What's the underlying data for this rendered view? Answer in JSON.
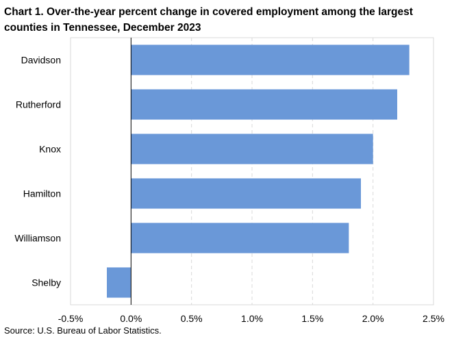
{
  "title": "Chart 1. Over-the-year percent change in covered employment among the largest counties in Tennessee, December 2023",
  "source": "Source: U.S. Bureau of Labor Statistics.",
  "chart_data": {
    "type": "bar",
    "orientation": "horizontal",
    "title": "Chart 1. Over-the-year percent change in covered employment among the largest counties in Tennessee, December 2023",
    "categories": [
      "Davidson",
      "Rutherford",
      "Knox",
      "Hamilton",
      "Williamson",
      "Shelby"
    ],
    "values": [
      2.3,
      2.2,
      2.0,
      1.9,
      1.8,
      -0.2
    ],
    "unit": "%",
    "xlim": [
      -0.5,
      2.5
    ],
    "xticks": [
      -0.5,
      0.0,
      0.5,
      1.0,
      1.5,
      2.0,
      2.5
    ],
    "xtick_labels": [
      "-0.5%",
      "0.0%",
      "0.5%",
      "1.0%",
      "1.5%",
      "2.0%",
      "2.5%"
    ],
    "grid": "vertical dashed",
    "bar_color": "#6a98d8"
  }
}
